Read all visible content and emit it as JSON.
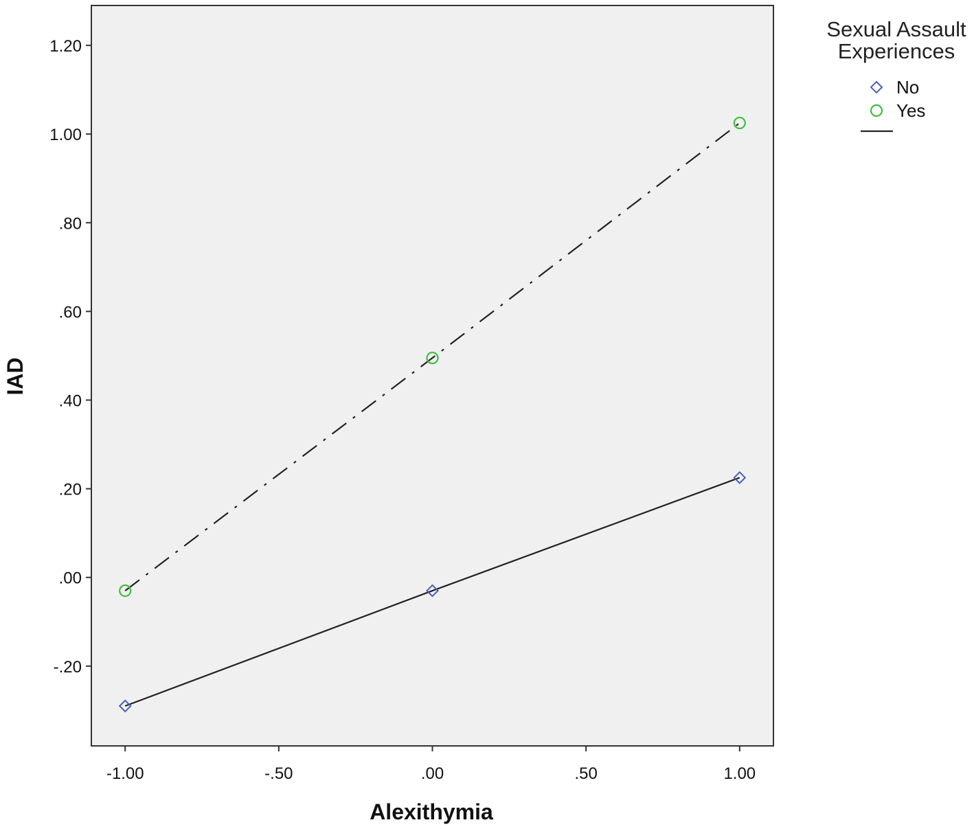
{
  "chart_data": {
    "type": "line",
    "title": "",
    "xlabel": "Alexithymia",
    "ylabel": "IAD",
    "x": [
      -1.0,
      0.0,
      1.0
    ],
    "xlim": [
      -1.11,
      1.11
    ],
    "ylim": [
      -0.38,
      1.29
    ],
    "xticks": [
      -1.0,
      -0.5,
      0.0,
      0.5,
      1.0
    ],
    "xtick_labels": [
      "-1.00",
      "-.50",
      ".00",
      ".50",
      "1.00"
    ],
    "yticks": [
      -0.2,
      0.0,
      0.2,
      0.4,
      0.6,
      0.8,
      1.0,
      1.2
    ],
    "ytick_labels": [
      "-.20",
      ".00",
      ".20",
      ".40",
      ".60",
      ".80",
      "1.00",
      "1.20"
    ],
    "grid": false,
    "background": "#f0f0f0",
    "legend": {
      "title_lines": [
        "Sexual Assault",
        "Experiences"
      ],
      "placement": "outside-top-right"
    },
    "series": [
      {
        "name": "No",
        "values": [
          -0.29,
          -0.03,
          0.225
        ],
        "marker": "diamond",
        "marker_color": "#4a5fb5",
        "line": "solid",
        "line_color": "#222222"
      },
      {
        "name": "Yes",
        "values": [
          -0.03,
          0.495,
          1.025
        ],
        "marker": "circle",
        "marker_color": "#3cbf3c",
        "line": "dash-dot",
        "line_color": "#222222"
      }
    ]
  }
}
